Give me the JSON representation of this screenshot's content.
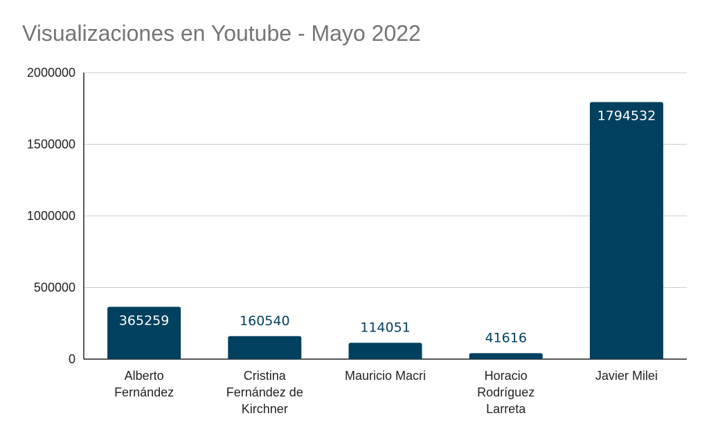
{
  "chart_data": {
    "type": "bar",
    "title": "Visualizaciones en Youtube - Mayo 2022",
    "xlabel": "",
    "ylabel": "",
    "categories": [
      [
        "Alberto",
        "Fernández"
      ],
      [
        "Cristina",
        "Fernández de",
        "Kirchner"
      ],
      [
        "Mauricio Macri"
      ],
      [
        "Horacio",
        "Rodríguez",
        "Larreta"
      ],
      [
        "Javier Milei"
      ]
    ],
    "values": [
      365259,
      160540,
      114051,
      41616,
      1794532
    ],
    "ylim": [
      0,
      2000000
    ],
    "yticks": [
      0,
      500000,
      1000000,
      1500000,
      2000000
    ],
    "grid": true,
    "legend": "none",
    "colors": {
      "bar": "#01405e",
      "label_inside": "#ffffff",
      "label_outside": "#01405e",
      "grid": "#cccccc",
      "axis": "#222222",
      "title": "#757575"
    }
  }
}
